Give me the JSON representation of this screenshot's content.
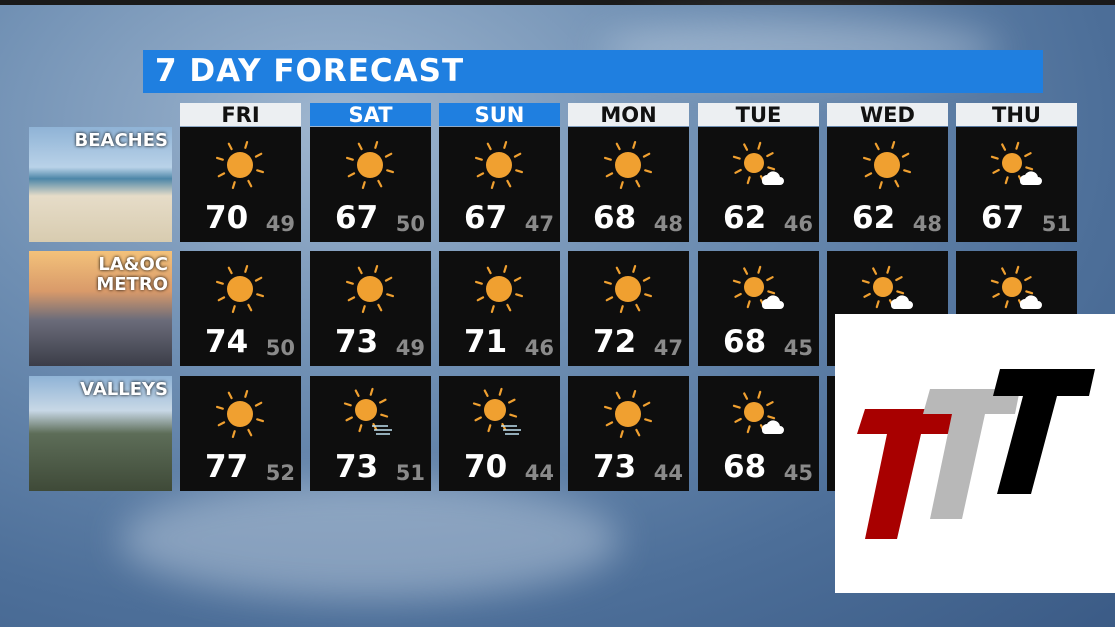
{
  "title": "7 DAY FORECAST",
  "days": [
    {
      "label": "FRI",
      "highlight": false
    },
    {
      "label": "SAT",
      "highlight": true
    },
    {
      "label": "SUN",
      "highlight": true
    },
    {
      "label": "MON",
      "highlight": false
    },
    {
      "label": "TUE",
      "highlight": false
    },
    {
      "label": "WED",
      "highlight": false
    },
    {
      "label": "THU",
      "highlight": false
    }
  ],
  "colors": {
    "title_bar": "#1f7fe0",
    "sun": "#f0a030",
    "cell_bg": "#0e0e0e",
    "low_temp": "#8a8a8a"
  },
  "regions": [
    {
      "label": "BEACHES",
      "cells": [
        {
          "icon": "sunny",
          "high": "70",
          "low": "49"
        },
        {
          "icon": "sunny",
          "high": "67",
          "low": "50"
        },
        {
          "icon": "sunny",
          "high": "67",
          "low": "47"
        },
        {
          "icon": "sunny",
          "high": "68",
          "low": "48"
        },
        {
          "icon": "partly-sunny",
          "high": "62",
          "low": "46"
        },
        {
          "icon": "sunny",
          "high": "62",
          "low": "48"
        },
        {
          "icon": "partly-sunny",
          "high": "67",
          "low": "51"
        }
      ]
    },
    {
      "label": "LA&OC METRO",
      "cells": [
        {
          "icon": "sunny",
          "high": "74",
          "low": "50"
        },
        {
          "icon": "sunny",
          "high": "73",
          "low": "49"
        },
        {
          "icon": "sunny",
          "high": "71",
          "low": "46"
        },
        {
          "icon": "sunny",
          "high": "72",
          "low": "47"
        },
        {
          "icon": "partly-sunny",
          "high": "68",
          "low": "45"
        },
        {
          "icon": "partly-sunny"
        },
        {
          "icon": "partly-sunny"
        }
      ]
    },
    {
      "label": "VALLEYS",
      "cells": [
        {
          "icon": "sunny",
          "high": "77",
          "low": "52"
        },
        {
          "icon": "sunny-windy",
          "high": "73",
          "low": "51"
        },
        {
          "icon": "sunny-windy",
          "high": "70",
          "low": "44"
        },
        {
          "icon": "sunny",
          "high": "73",
          "low": "44"
        },
        {
          "icon": "partly-sunny",
          "high": "68",
          "low": "45"
        },
        {},
        {}
      ]
    }
  ],
  "logo": {
    "text": "TTT",
    "colors": [
      "#a80000",
      "#b8b8b8",
      "#000000"
    ]
  }
}
